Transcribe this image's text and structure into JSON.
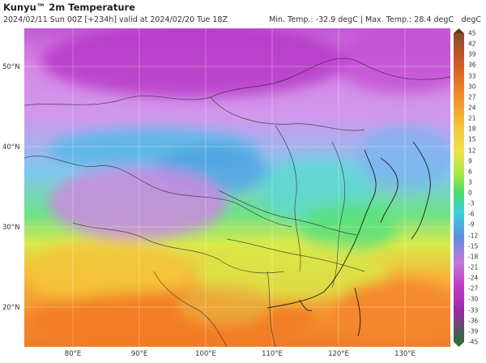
{
  "header": {
    "title": "Kunyu™ 2m Temperature",
    "subtitle": "2024/02/11 Sun 00Z [+234h] valid at 2024/02/20 Tue 18Z",
    "minmax": "Min. Temp.: -32.9 degC | Max. Temp.: 28.4 degC",
    "unit": "degC"
  },
  "map": {
    "lat_labels": [
      "50°N",
      "40°N",
      "30°N",
      "20°N"
    ],
    "lon_labels": [
      "80°E",
      "90°E",
      "100°E",
      "110°E",
      "120°E",
      "130°E"
    ]
  },
  "colorbar": {
    "labels": [
      "45",
      "42",
      "39",
      "36",
      "33",
      "30",
      "27",
      "24",
      "21",
      "18",
      "15",
      "12",
      "9",
      "6",
      "3",
      "0",
      "-3",
      "-6",
      "-9",
      "-12",
      "-15",
      "-18",
      "-21",
      "-24",
      "-27",
      "-30",
      "-33",
      "-36",
      "-39",
      "-45"
    ],
    "colors": {
      "hot": "#8a4a2a",
      "orange": "#f28a2c",
      "yellow": "#f2e24a",
      "green": "#4bd86a",
      "cyan": "#3ed0e0",
      "blue": "#5a8fe0",
      "violet": "#c47ad8",
      "magenta": "#c238c8",
      "cold": "#2d6e3a"
    }
  }
}
